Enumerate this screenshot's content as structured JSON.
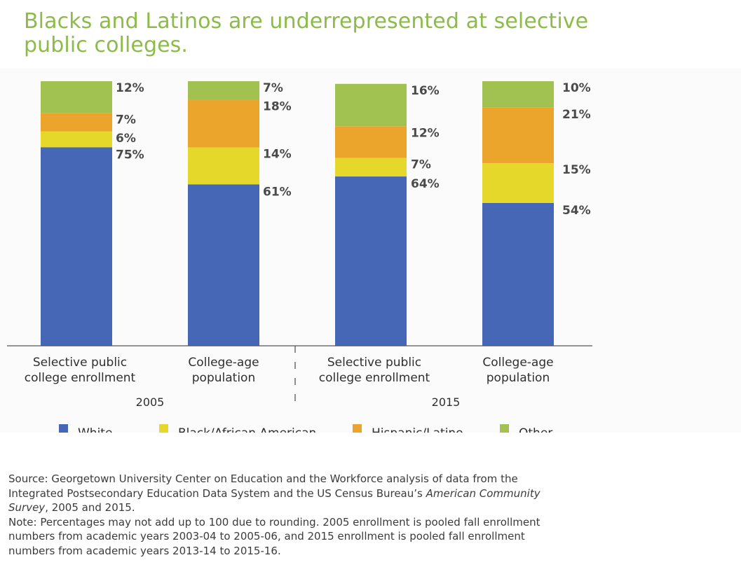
{
  "title_lines": [
    "Blacks and Latinos are underrepresented at selective",
    "public colleges."
  ],
  "colors": {
    "title": "#8cbb4a",
    "White": "#4667b6",
    "Black/African American": "#e6d82a",
    "Hispanic/Latino": "#eca52c",
    "Other": "#a1c150"
  },
  "chart_data": {
    "type": "bar",
    "stacked": true,
    "title": "Blacks and Latinos are underrepresented at selective public colleges.",
    "categories": [
      "Selective public college enrollment (2005)",
      "College-age population (2005)",
      "Selective public college enrollment (2015)",
      "College-age population (2015)"
    ],
    "category_label_lines": [
      [
        "Selective public",
        "college enrollment"
      ],
      [
        "College-age",
        "population"
      ],
      [
        "Selective public",
        "college enrollment"
      ],
      [
        "College-age",
        "population"
      ]
    ],
    "groups": [
      {
        "label": "2005",
        "categories": [
          0,
          1
        ]
      },
      {
        "label": "2015",
        "categories": [
          2,
          3
        ]
      }
    ],
    "series": [
      {
        "name": "White",
        "values": [
          75,
          61,
          64,
          54
        ]
      },
      {
        "name": "Black/African American",
        "values": [
          6,
          14,
          7,
          15
        ]
      },
      {
        "name": "Hispanic/Latino",
        "values": [
          7,
          18,
          12,
          21
        ]
      },
      {
        "name": "Other",
        "values": [
          12,
          7,
          16,
          10
        ]
      }
    ],
    "value_labels": [
      [
        "75%",
        "6%",
        "7%",
        "12%"
      ],
      [
        "61%",
        "14%",
        "18%",
        "7%"
      ],
      [
        "64%",
        "7%",
        "12%",
        "16%"
      ],
      [
        "54%",
        "15%",
        "21%",
        "10%"
      ]
    ],
    "legend": [
      "White",
      "Black/African American",
      "Hispanic/Latino",
      "Other"
    ],
    "legend_position": "bottom",
    "ylim": [
      0,
      100
    ],
    "xlabel": "",
    "ylabel": "",
    "grid": false
  },
  "footnote": {
    "source_prefix": "Source: Georgetown University Center on Education and the Workforce analysis of data from the Integrated Postsecondary Education Data System and the US Census Bureau’s ",
    "source_italic": "American Community Survey",
    "source_suffix": ", 2005 and 2015.",
    "note": "Note: Percentages may not add up to 100 due to rounding. 2005 enrollment is pooled fall enrollment numbers from academic years 2003-04 to 2005-06, and 2015 enrollment is pooled fall enrollment numbers from academic years 2013-14 to 2015-16."
  }
}
